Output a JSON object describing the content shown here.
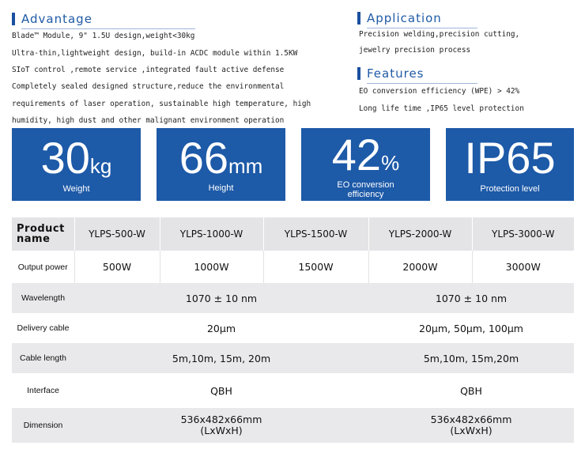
{
  "advantage": {
    "title": "Advantage",
    "lines": [
      "Blade™ Module, 9\" 1.5U design,weight<30kg",
      "Ultra-thin,lightweight design, build-in ACDC module within 1.5KW",
      "SIoT control ,remote service ,integrated fault active defense",
      "Completely sealed designed structure,reduce the environmental",
      "requirements of laser operation, sustainable high temperature, high",
      "humidity, high dust and other malignant environment operation"
    ]
  },
  "application": {
    "title": "Application",
    "lines": [
      "Precision welding,precision cutting,",
      "jewelry precision process"
    ]
  },
  "features": {
    "title": "Features",
    "lines": [
      "EO conversion efficiency (WPE) > 42%",
      "Long life time ,IP65 level protection"
    ]
  },
  "stats": [
    {
      "value": "30",
      "unit": "kg",
      "label": "Weight"
    },
    {
      "value": "66",
      "unit": "mm",
      "label": "Height"
    },
    {
      "value": "42",
      "unit": "%",
      "label_line1": "EO conversion",
      "label_line2": "efficiency"
    },
    {
      "value": "IP65",
      "unit": "",
      "label": "Protection level"
    }
  ],
  "table": {
    "header": {
      "label_line1": "Product",
      "label_line2": "name",
      "models": [
        "YLPS-500-W",
        "YLPS-1000-W",
        "YLPS-1500-W",
        "YLPS-2000-W",
        "YLPS-3000-W"
      ]
    },
    "output_power": {
      "label": "Output power",
      "values": [
        "500W",
        "1000W",
        "1500W",
        "2000W",
        "3000W"
      ]
    },
    "wavelength": {
      "label": "Wavelength",
      "left": "1070 ± 10 nm",
      "right": "1070 ± 10 nm"
    },
    "delivery_cable": {
      "label": "Delivery cable",
      "left": "20μm",
      "right": "20μm, 50μm, 100μm"
    },
    "cable_length": {
      "label": "Cable length",
      "left": "5m,10m, 15m, 20m",
      "right": "5m,10m, 15m,20m"
    },
    "interface": {
      "label": "Interface",
      "left": "QBH",
      "right": "QBH"
    },
    "dimension": {
      "label": "Dimension",
      "left_line1": "536x482x66mm",
      "left_line2": "(LxWxH)",
      "right_line1": "536x482x66mm",
      "right_line2": "(LxWxH)"
    }
  }
}
